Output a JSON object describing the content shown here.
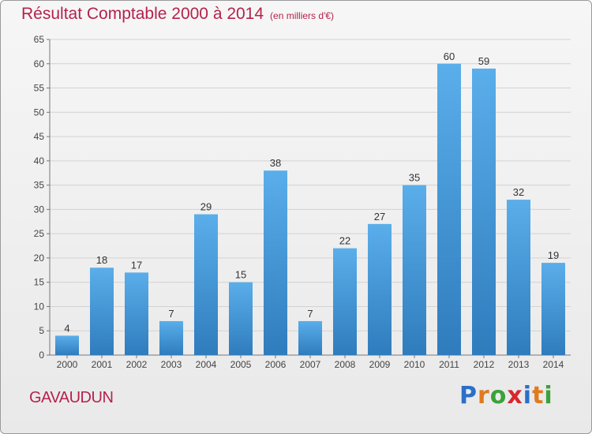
{
  "title": "Résultat Comptable 2000 à 2014",
  "subtitle": "(en milliers d'€)",
  "commune": "GAVAUDUN",
  "logo": {
    "text": "Proxiti",
    "letter_colors": [
      "#2a6fc9",
      "#e07a1f",
      "#3aa23a",
      "#d8262e",
      "#2a6fc9",
      "#e07a1f",
      "#3aa23a"
    ]
  },
  "colors": {
    "bar_top": "#5aaeea",
    "bar_bottom": "#2f7cbd",
    "title": "#b5224a",
    "grid": "#d2d2d2",
    "axis_text": "#444444"
  },
  "chart_data": {
    "type": "bar",
    "title": "Résultat Comptable 2000 à 2014",
    "subtitle": "(en milliers d'€)",
    "xlabel": "",
    "ylabel": "",
    "categories": [
      "2000",
      "2001",
      "2002",
      "2003",
      "2004",
      "2005",
      "2006",
      "2007",
      "2008",
      "2009",
      "2010",
      "2011",
      "2012",
      "2013",
      "2014"
    ],
    "values": [
      4,
      18,
      17,
      7,
      29,
      15,
      38,
      7,
      22,
      27,
      35,
      60,
      59,
      32,
      19
    ],
    "ylim": [
      0,
      65
    ],
    "yticks": [
      0,
      5,
      10,
      15,
      20,
      25,
      30,
      35,
      40,
      45,
      50,
      55,
      60,
      65
    ],
    "grid": true,
    "data_labels": true
  }
}
